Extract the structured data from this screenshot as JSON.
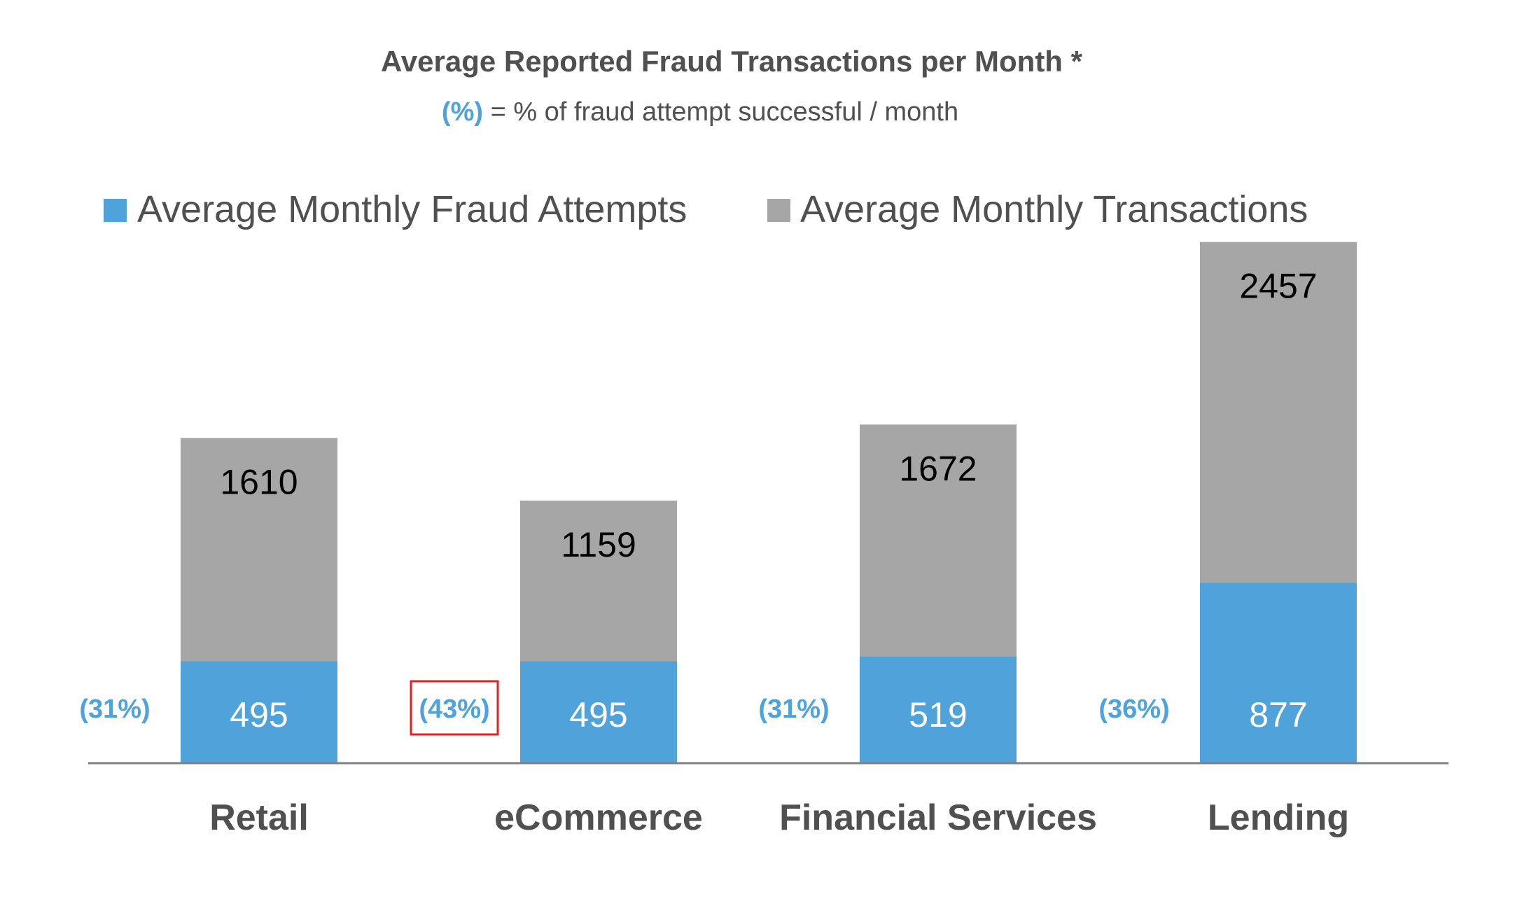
{
  "chart_data": {
    "type": "bar",
    "stacked": true,
    "title": "Average Reported Fraud Transactions per Month *",
    "subtitle_key": "(%)",
    "subtitle_text": " = % of fraud attempt successful / month",
    "categories": [
      "Retail",
      "eCommerce",
      "Financial Services",
      "Lending"
    ],
    "series": [
      {
        "name": "Average Monthly Fraud Attempts",
        "color": "#4fa3da",
        "values": [
          495,
          495,
          519,
          877
        ]
      },
      {
        "name": "Average Monthly Transactions",
        "color": "#a6a6a6",
        "values": [
          1610,
          1159,
          1672,
          2457
        ]
      }
    ],
    "success_rates": [
      "(31%)",
      "(43%)",
      "(31%)",
      "(36%)"
    ],
    "highlighted_rate_index": 1,
    "legend_position": "top-left",
    "grid": false,
    "colors": {
      "title": "#505050",
      "key": "#4fa3da",
      "axis": "#808080",
      "highlight": "#e02020"
    }
  }
}
